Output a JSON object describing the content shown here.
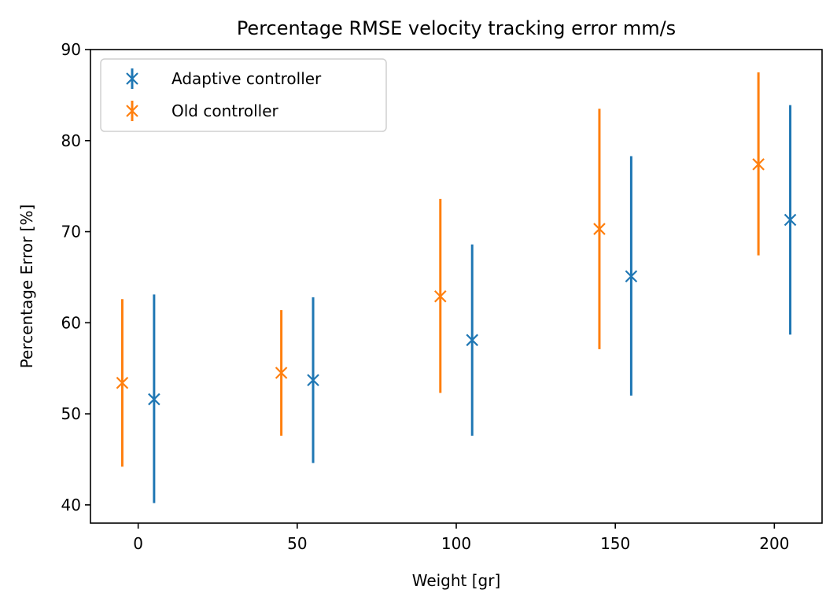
{
  "chart_data": {
    "type": "errorbar",
    "title": "Percentage RMSE velocity tracking error mm/s",
    "xlabel": "Weight [gr]",
    "ylabel": "Percentage Error [%]",
    "xlim": [
      -15,
      215
    ],
    "ylim": [
      38,
      90
    ],
    "xticks": [
      0,
      50,
      100,
      150,
      200
    ],
    "yticks": [
      40,
      50,
      60,
      70,
      80,
      90
    ],
    "grid": false,
    "legend_position": "top-left",
    "marker": "x",
    "series": [
      {
        "name": "Adaptive controller",
        "color": "#1f77b4",
        "points": [
          {
            "x": 5,
            "y": 51.6,
            "low": 40.2,
            "high": 63.1
          },
          {
            "x": 55,
            "y": 53.7,
            "low": 44.6,
            "high": 62.8
          },
          {
            "x": 105,
            "y": 58.1,
            "low": 47.6,
            "high": 68.6
          },
          {
            "x": 155,
            "y": 65.1,
            "low": 52.0,
            "high": 78.3
          },
          {
            "x": 205,
            "y": 71.3,
            "low": 58.7,
            "high": 83.9
          }
        ]
      },
      {
        "name": "Old controller",
        "color": "#ff7f0e",
        "points": [
          {
            "x": -5,
            "y": 53.4,
            "low": 44.2,
            "high": 62.6
          },
          {
            "x": 45,
            "y": 54.5,
            "low": 47.6,
            "high": 61.4
          },
          {
            "x": 95,
            "y": 62.9,
            "low": 52.3,
            "high": 73.6
          },
          {
            "x": 145,
            "y": 70.3,
            "low": 57.1,
            "high": 83.5
          },
          {
            "x": 195,
            "y": 77.4,
            "low": 67.4,
            "high": 87.5
          }
        ]
      }
    ]
  }
}
